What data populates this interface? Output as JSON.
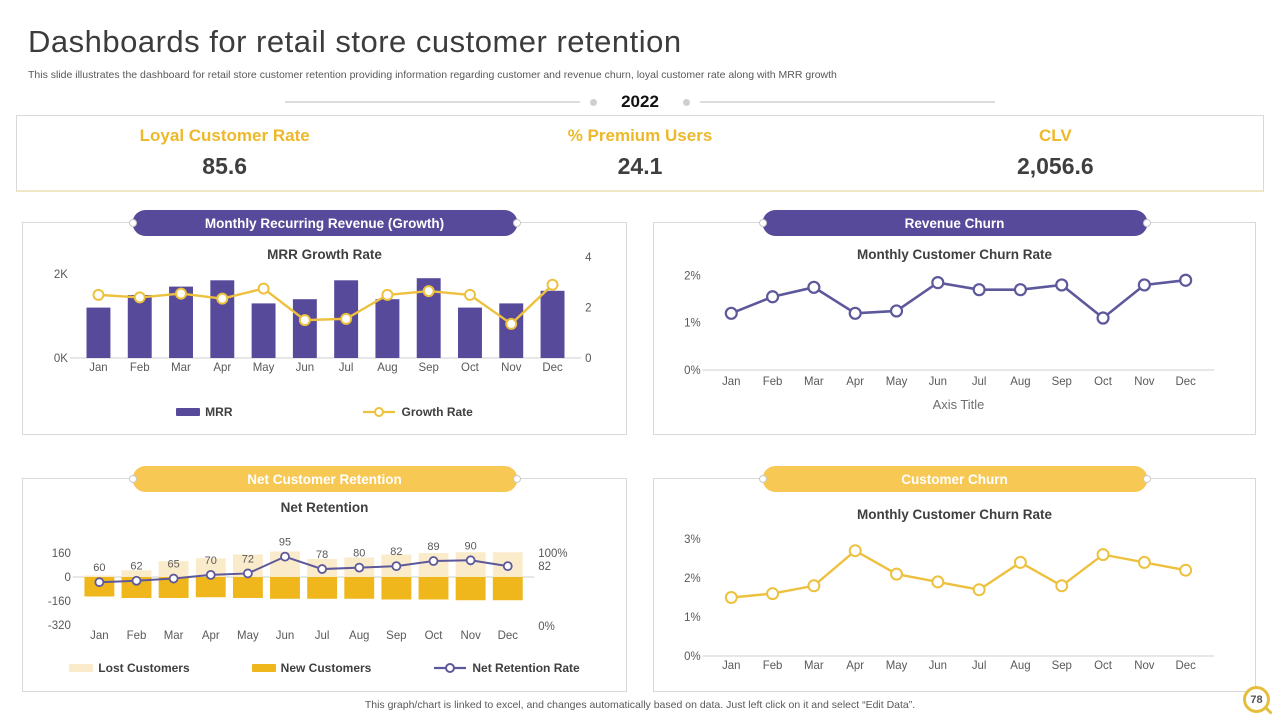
{
  "header": {
    "title": "Dashboards for retail store customer retention",
    "subtitle": "This slide illustrates the dashboard for retail store customer retention providing information regarding customer and revenue churn, loyal customer rate along with MRR growth",
    "year": "2022"
  },
  "kpis": [
    {
      "label": "Loyal Customer Rate",
      "value": "85.6"
    },
    {
      "label": "% Premium Users",
      "value": "24.1"
    },
    {
      "label": "CLV",
      "value": "2,056.6"
    }
  ],
  "colors": {
    "purple": "#584A9B",
    "purple_line": "#5C589B",
    "gold_line": "#EDC13E",
    "gold_bar": "#EFB71C",
    "cream_bar": "#FAEBCB",
    "yellow_pill": "#F7C854",
    "kpi_yellow": "#EDB829"
  },
  "chart_data": [
    {
      "id": "mrr-growth",
      "type": "bar",
      "pill_label": "Monthly Recurring Revenue (Growth)",
      "pill_color": "#584A9B",
      "title": "MRR Growth Rate",
      "categories": [
        "Jan",
        "Feb",
        "Mar",
        "Apr",
        "May",
        "Jun",
        "Jul",
        "Aug",
        "Sep",
        "Oct",
        "Nov",
        "Dec"
      ],
      "left_axis": {
        "range": [
          0,
          2000
        ],
        "ticks": [
          {
            "v": 0,
            "label": "0K"
          },
          {
            "v": 2000,
            "label": "2K"
          }
        ]
      },
      "right_axis": {
        "range": [
          0,
          4
        ],
        "ticks": [
          {
            "v": 0,
            "label": "0"
          },
          {
            "v": 2,
            "label": "2"
          },
          {
            "v": 4,
            "label": "4"
          }
        ]
      },
      "series": [
        {
          "name": "MRR",
          "type": "bar",
          "axis": "left",
          "color": "#584A9B",
          "values": [
            1200,
            1500,
            1700,
            1850,
            1300,
            1400,
            1850,
            1400,
            1900,
            1200,
            1300,
            1600
          ]
        },
        {
          "name": "Growth Rate",
          "type": "line",
          "axis": "right",
          "color": "#EDC13E",
          "values": [
            2.5,
            2.4,
            2.55,
            2.35,
            2.75,
            1.5,
            1.55,
            2.5,
            2.65,
            2.5,
            1.35,
            2.9
          ]
        }
      ],
      "legend": [
        {
          "label": "MRR",
          "swatch": "bar",
          "color": "#584A9B"
        },
        {
          "label": "Growth Rate",
          "swatch": "line",
          "color": "#EDC13E"
        }
      ]
    },
    {
      "id": "revenue-churn",
      "type": "line",
      "pill_label": "Revenue Churn",
      "pill_color": "#584A9B",
      "title": "Monthly Customer Churn Rate",
      "x_axis_title": "Axis Title",
      "categories": [
        "Jan",
        "Feb",
        "Mar",
        "Apr",
        "May",
        "Jun",
        "Jul",
        "Aug",
        "Sep",
        "Oct",
        "Nov",
        "Dec"
      ],
      "left_axis": {
        "range": [
          0,
          2
        ],
        "ticks": [
          {
            "v": 0,
            "label": "0%"
          },
          {
            "v": 1,
            "label": "1%"
          },
          {
            "v": 2,
            "label": "2%"
          }
        ]
      },
      "series": [
        {
          "name": "Monthly Customer Churn Rate",
          "type": "line",
          "axis": "left",
          "color": "#5C589B",
          "values": [
            1.2,
            1.55,
            1.75,
            1.2,
            1.25,
            1.85,
            1.7,
            1.7,
            1.8,
            1.1,
            1.8,
            1.9
          ]
        }
      ]
    },
    {
      "id": "net-retention",
      "type": "bar",
      "pill_label": "Net Customer Retention",
      "pill_color": "#F7C854",
      "title": "Net Retention",
      "categories": [
        "Jan",
        "Feb",
        "Mar",
        "Apr",
        "May",
        "Jun",
        "Jul",
        "Aug",
        "Sep",
        "Oct",
        "Nov",
        "Dec"
      ],
      "left_axis": {
        "range": [
          -320,
          160
        ],
        "ticks": [
          {
            "v": 160,
            "label": "160"
          },
          {
            "v": 0,
            "label": "0"
          },
          {
            "v": -160,
            "label": "-160"
          },
          {
            "v": -320,
            "label": "-320"
          }
        ]
      },
      "right_axis": {
        "range": [
          0,
          100
        ],
        "ticks": [
          {
            "v": 100,
            "label": "100%"
          },
          {
            "v": 0,
            "label": "0%"
          }
        ]
      },
      "right_annotations": [
        {
          "v": 82,
          "label": "82"
        }
      ],
      "series": [
        {
          "name": "Lost Customers",
          "type": "bar",
          "axis": "left",
          "color": "#FAEBCB",
          "values": [
            10,
            45,
            105,
            125,
            150,
            170,
            120,
            130,
            150,
            160,
            165,
            165
          ]
        },
        {
          "name": "New Customers",
          "type": "bar",
          "axis": "left",
          "color": "#EFB71C",
          "values": [
            -130,
            -140,
            -140,
            -135,
            -140,
            -145,
            -145,
            -145,
            -150,
            -150,
            -155,
            -155
          ]
        },
        {
          "name": "Net Retention Rate",
          "type": "line",
          "axis": "right",
          "color": "#5C589B",
          "values": [
            60,
            62,
            65,
            70,
            72,
            95,
            78,
            80,
            82,
            89,
            90,
            82
          ],
          "point_labels": [
            "60",
            "62",
            "65",
            "70",
            "72",
            "95",
            "78",
            "80",
            "82",
            "89",
            "90",
            ""
          ]
        }
      ],
      "legend": [
        {
          "label": "Lost Customers",
          "swatch": "bar",
          "color": "#FAEBCB"
        },
        {
          "label": "New Customers",
          "swatch": "bar",
          "color": "#EFB71C"
        },
        {
          "label": "Net Retention Rate",
          "swatch": "line",
          "color": "#5C589B"
        }
      ]
    },
    {
      "id": "customer-churn",
      "type": "line",
      "pill_label": "Customer Churn",
      "pill_color": "#F7C854",
      "title": "Monthly Customer Churn Rate",
      "categories": [
        "Jan",
        "Feb",
        "Mar",
        "Apr",
        "May",
        "Jun",
        "Jul",
        "Aug",
        "Sep",
        "Oct",
        "Nov",
        "Dec"
      ],
      "left_axis": {
        "range": [
          0,
          3
        ],
        "ticks": [
          {
            "v": 0,
            "label": "0%"
          },
          {
            "v": 1,
            "label": "1%"
          },
          {
            "v": 2,
            "label": "2%"
          },
          {
            "v": 3,
            "label": "3%"
          }
        ]
      },
      "series": [
        {
          "name": "Monthly Customer Churn Rate",
          "type": "line",
          "axis": "left",
          "color": "#EDC13E",
          "values": [
            1.5,
            1.6,
            1.8,
            2.7,
            2.1,
            1.9,
            1.7,
            2.4,
            1.8,
            2.6,
            2.4,
            2.2
          ]
        }
      ]
    }
  ],
  "footer": {
    "note": "This graph/chart is linked to excel, and changes automatically based on data. Just left click on it and select “Edit Data”.",
    "page_number": "78"
  }
}
